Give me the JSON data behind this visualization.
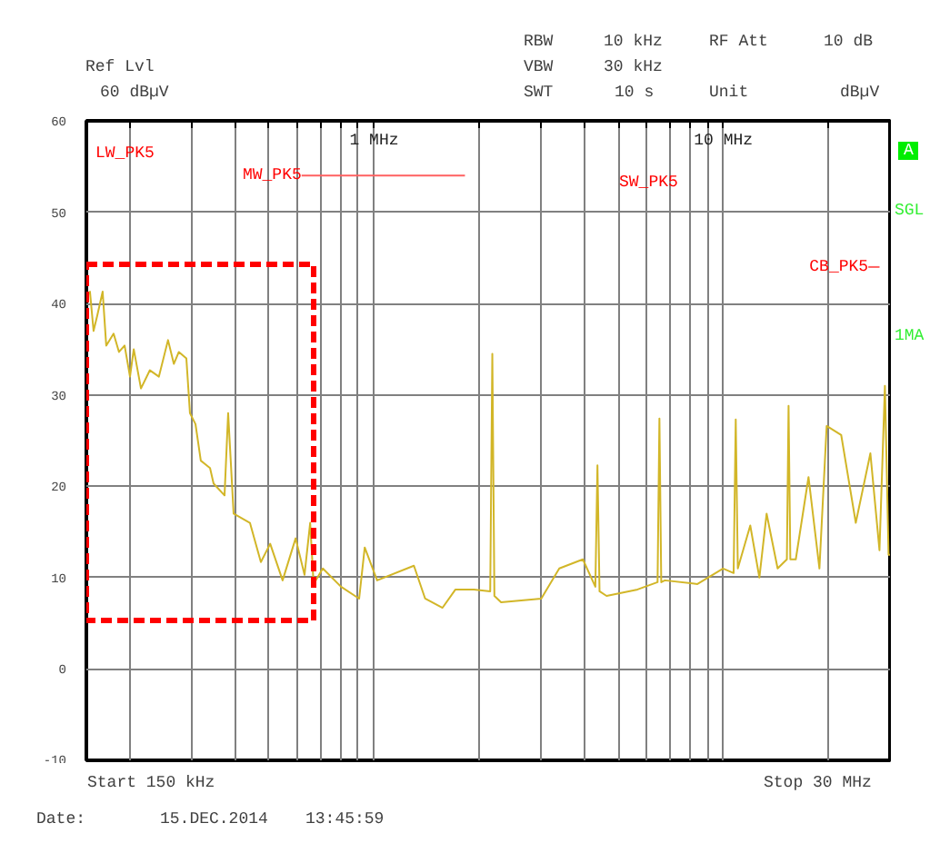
{
  "chart_data": {
    "type": "line",
    "annotations": [
      "Ref Lvl",
      "60 dBµV",
      "RBW",
      "10 kHz",
      "RF Att",
      "10 dB",
      "VBW",
      "30 kHz",
      "SWT",
      "10 s",
      "Unit",
      "dBµV",
      "A",
      "SGL",
      "1MA",
      "Start 150 kHz",
      "Stop 30 MHz",
      "Date:",
      "15.DEC.2014",
      "13:45:59",
      "LW_PK5",
      "SW_PK5"
    ],
    "x": [
      0.15,
      0.1536,
      0.1573,
      0.1612,
      0.167,
      0.171,
      0.1795,
      0.186,
      0.193,
      0.2,
      0.205,
      0.215,
      0.228,
      0.242,
      0.257,
      0.267,
      0.276,
      0.29,
      0.297,
      0.308,
      0.319,
      0.339,
      0.347,
      0.373,
      0.382,
      0.396,
      0.441,
      0.474,
      0.504,
      0.547,
      0.596,
      0.632,
      0.656,
      0.671,
      0.713,
      0.804,
      0.906,
      0.94,
      1.02,
      1.3,
      1.4,
      1.57,
      1.71,
      1.93,
      2.15,
      2.18,
      2.21,
      2.31,
      3.01,
      3.39,
      3.96,
      4.3,
      4.36,
      4.42,
      4.63,
      5.68,
      6.48,
      6.56,
      6.64,
      6.8,
      8.43,
      9.98,
      10.7,
      10.85,
      11.0,
      11.94,
      12.68,
      13.3,
      14.3,
      15.2,
      15.37,
      15.55,
      16.12,
      17.53,
      18.84,
      19.76,
      21.75,
      23.94,
      26.36,
      27.99,
      29.01,
      29.72,
      30
    ],
    "series": [
      {
        "color": "#d2b628",
        "values": [
          40.7,
          41.3,
          37,
          38.7,
          41.3,
          35.4,
          36.7,
          34.7,
          35.4,
          32,
          35,
          30.7,
          32.7,
          32,
          36,
          33.4,
          34.7,
          34,
          28,
          26.8,
          22.8,
          22,
          20.3,
          19,
          28,
          17,
          16,
          11.7,
          13.7,
          9.7,
          14.3,
          10.3,
          16,
          9.3,
          11,
          9,
          7.7,
          13.3,
          9.7,
          11.3,
          7.7,
          6.7,
          8.7,
          8.7,
          8.5,
          34.5,
          8,
          7.3,
          7.7,
          11,
          12,
          9,
          22.3,
          8.5,
          8,
          8.7,
          9.5,
          27.4,
          9.5,
          9.7,
          9.3,
          11,
          10.5,
          27.3,
          11,
          15.7,
          10,
          17,
          11,
          12,
          28.8,
          12,
          12,
          21,
          11,
          26.6,
          25.6,
          16,
          23.6,
          13,
          31,
          12.5,
          12.5
        ]
      },
      {
        "type": "line",
        "name": "MW_PK5",
        "color": "#ff6060",
        "x": [
          0.62,
          1.82
        ],
        "values": [
          54,
          54
        ]
      },
      {
        "type": "line",
        "name": "CB_PK5",
        "color": "#ff6060",
        "x": [
          26,
          28
        ],
        "values": [
          44,
          44
        ]
      }
    ],
    "xlim": [
      0.15,
      30
    ],
    "ylim": [
      -10,
      60
    ],
    "xticks": [
      {
        "value": 0.2,
        "label": null
      },
      {
        "value": 0.3,
        "label": null
      },
      {
        "value": 0.4,
        "label": null
      },
      {
        "value": 0.5,
        "label": null
      },
      {
        "value": 0.6,
        "label": null
      },
      {
        "value": 0.7,
        "label": null
      },
      {
        "value": 0.8,
        "label": null
      },
      {
        "value": 0.9,
        "label": null
      },
      {
        "value": 1,
        "label": "1 MHz"
      },
      {
        "value": 2,
        "label": null
      },
      {
        "value": 3,
        "label": null
      },
      {
        "value": 4,
        "label": null
      },
      {
        "value": 5,
        "label": null
      },
      {
        "value": 6,
        "label": null
      },
      {
        "value": 7,
        "label": null
      },
      {
        "value": 8,
        "label": null
      },
      {
        "value": 9,
        "label": null
      },
      {
        "value": 10,
        "label": "10 MHz"
      },
      {
        "value": 20,
        "label": null
      }
    ],
    "yticks": [
      -10,
      0,
      10,
      20,
      30,
      40,
      50,
      60
    ],
    "log": "x",
    "grid": true,
    "marker": "none",
    "line_style": "solid"
  }
}
